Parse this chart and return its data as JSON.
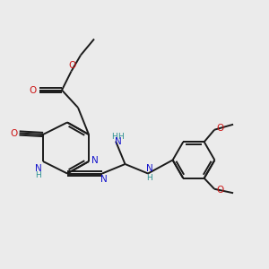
{
  "background_color": "#ebebeb",
  "bond_color": "#1a1a1a",
  "N_color": "#1414cc",
  "O_color": "#cc1414",
  "NH_color": "#2a9090",
  "figsize": [
    3.0,
    3.0
  ],
  "dpi": 100,
  "xlim": [
    0,
    10
  ],
  "ylim": [
    0,
    10
  ]
}
